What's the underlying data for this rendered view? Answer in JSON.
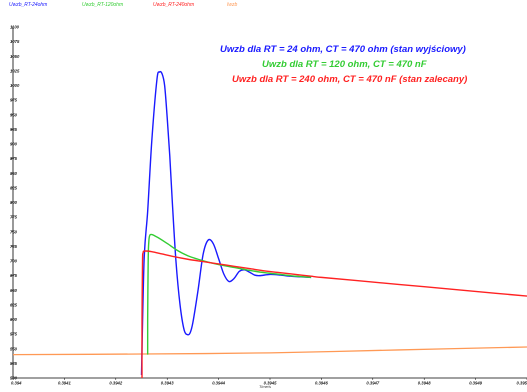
{
  "chart_data": {
    "type": "line",
    "title": "",
    "xlabel": "Time/s",
    "ylabel": "",
    "xlim": [
      0.394,
      0.395
    ],
    "ylim": [
      500,
      1100
    ],
    "x_ticks": [
      "0.394",
      "0.3941",
      "0.3942",
      "0.3943",
      "0.3944",
      "0.3945",
      "0.3946",
      "0.3947",
      "0.3948",
      "0.3949",
      "0.395"
    ],
    "y_ticks": [
      "500",
      "525",
      "550",
      "575",
      "600",
      "625",
      "650",
      "675",
      "700",
      "725",
      "750",
      "775",
      "800",
      "825",
      "850",
      "875",
      "900",
      "925",
      "950",
      "975",
      "1000",
      "1025",
      "1050",
      "1075",
      "1100"
    ],
    "grid": false,
    "legend": {
      "placement": "top",
      "entries": [
        {
          "name": "Uwzb_RT-24ohm",
          "color": "#1a1aff"
        },
        {
          "name": "Uwzb_RT-120ohm",
          "color": "#33cc33"
        },
        {
          "name": "Uwzb_RT-240ohm",
          "color": "#ff2222"
        },
        {
          "name": "Iwzb",
          "color": "#ff9955"
        }
      ]
    },
    "annotations": [
      {
        "text": "Uwzb dla RT = 24 ohm,  CT = 470 ohm (stan wyjściowy)",
        "color": "#1a1aff"
      },
      {
        "text": "Uwzb dla RT = 120 ohm,  CT = 470 nF",
        "color": "#33cc33"
      },
      {
        "text": "Uwzb dla RT = 240 ohm,  CT = 470 nF (stan zalecany)",
        "color": "#ff2222"
      }
    ],
    "series": [
      {
        "name": "Uwzb_RT-24ohm",
        "color": "#1a1aff",
        "x": [
          0.39425,
          0.394255,
          0.394262,
          0.39427,
          0.39428,
          0.394285,
          0.39429,
          0.394295,
          0.3943,
          0.394305,
          0.39431,
          0.394317,
          0.394325,
          0.394333,
          0.39434,
          0.394345,
          0.39435,
          0.39436,
          0.39437,
          0.39438,
          0.39439,
          0.3944,
          0.39441,
          0.39442,
          0.39443,
          0.39444,
          0.39445,
          0.39446,
          0.39447,
          0.39448,
          0.3945,
          0.39452,
          0.39454,
          0.39456,
          0.39458
        ],
        "y": [
          505,
          700,
          785,
          905,
          1010,
          1023,
          1020,
          1000,
          945,
          880,
          800,
          700,
          625,
          582,
          574,
          578,
          595,
          650,
          712,
          736,
          729,
          704,
          678,
          665,
          670,
          682,
          685,
          681,
          676,
          675,
          677,
          676,
          674,
          673,
          672
        ]
      },
      {
        "name": "Uwzb_RT-120ohm",
        "color": "#33cc33",
        "x": [
          0.394262,
          0.394262,
          0.394263,
          0.394264,
          0.394267,
          0.39428,
          0.3943,
          0.39432,
          0.39434,
          0.39436,
          0.39438,
          0.3944,
          0.39443,
          0.39446,
          0.39449,
          0.39452,
          0.39455,
          0.39458
        ],
        "y": [
          540,
          600,
          700,
          730,
          745,
          741,
          730,
          718,
          709,
          703,
          698,
          694,
          689,
          684,
          680,
          677,
          674,
          672
        ]
      },
      {
        "name": "Uwzb_RT-240ohm",
        "color": "#ff2222",
        "x": [
          0.394251,
          0.394251,
          0.394252,
          0.394253,
          0.394256,
          0.39427,
          0.39429,
          0.39431,
          0.39434,
          0.39437,
          0.3944,
          0.39443,
          0.39446,
          0.39449,
          0.39452,
          0.39455,
          0.39458,
          0.3946,
          0.3947,
          0.3948,
          0.3949,
          0.395
        ],
        "y": [
          500,
          600,
          700,
          714,
          717,
          716,
          712,
          708,
          703,
          699,
          695,
          691,
          687,
          683,
          680,
          677,
          674,
          672,
          664,
          656,
          648,
          640
        ]
      },
      {
        "name": "Iwzb",
        "color": "#ff9955",
        "x": [
          0.394,
          0.39425,
          0.3945,
          0.39475,
          0.395
        ],
        "y": [
          540,
          541,
          543,
          548,
          553
        ]
      }
    ]
  }
}
